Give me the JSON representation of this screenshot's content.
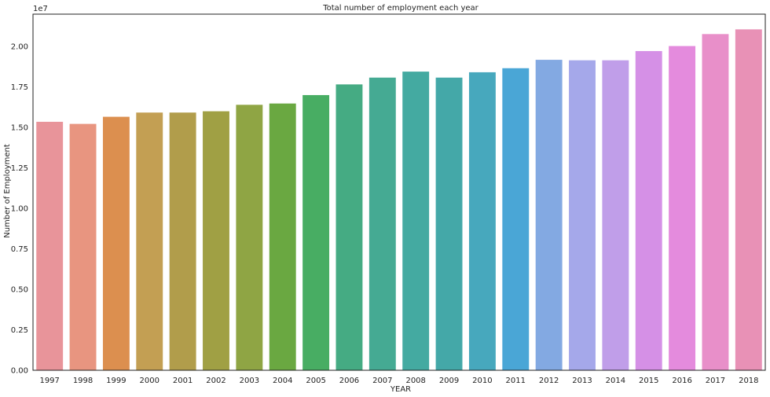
{
  "chart_data": {
    "type": "bar",
    "title": "Total number of employment each year",
    "xlabel": "YEAR",
    "ylabel": "Number of Employment",
    "y_offset_label": "1e7",
    "ylim": [
      0,
      2.2
    ],
    "yticks": [
      "0.00",
      "0.25",
      "0.50",
      "0.75",
      "1.00",
      "1.25",
      "1.50",
      "1.75",
      "2.00"
    ],
    "ytick_values": [
      0,
      0.25,
      0.5,
      0.75,
      1.0,
      1.25,
      1.5,
      1.75,
      2.0
    ],
    "categories": [
      "1997",
      "1998",
      "1999",
      "2000",
      "2001",
      "2002",
      "2003",
      "2004",
      "2005",
      "2006",
      "2007",
      "2008",
      "2009",
      "2010",
      "2011",
      "2012",
      "2013",
      "2014",
      "2015",
      "2016",
      "2017",
      "2018"
    ],
    "values": [
      1.535,
      1.522,
      1.566,
      1.592,
      1.592,
      1.6,
      1.64,
      1.648,
      1.7,
      1.766,
      1.808,
      1.845,
      1.808,
      1.841,
      1.866,
      1.918,
      1.915,
      1.915,
      1.972,
      2.003,
      2.077,
      2.106
    ],
    "colors": [
      "#e8949a",
      "#e89580",
      "#dc8f4f",
      "#c39f53",
      "#b19d4b",
      "#a0a044",
      "#8fa544",
      "#6aa841",
      "#48ad63",
      "#45ab83",
      "#45aa93",
      "#44aaa1",
      "#44a8a8",
      "#47a8bd",
      "#4aa6d6",
      "#83a9e2",
      "#a5a8ea",
      "#c09ee9",
      "#d590e6",
      "#e48bdd",
      "#e88fc9",
      "#e891b6"
    ],
    "grid": false,
    "legend": "none"
  }
}
